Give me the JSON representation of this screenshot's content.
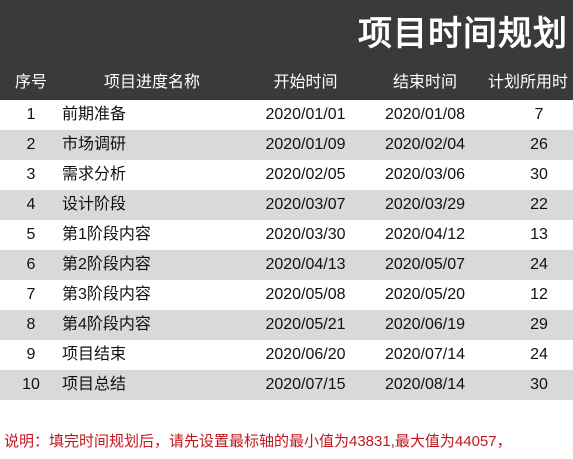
{
  "title": "项目时间规划",
  "headers": {
    "index": "序号",
    "name": "项目进度名称",
    "start": "开始时间",
    "end": "结束时间",
    "days": "计划所用时"
  },
  "rows": [
    {
      "index": "1",
      "name": "前期准备",
      "start": "2020/01/01",
      "end": "2020/01/08",
      "days": "7"
    },
    {
      "index": "2",
      "name": "市场调研",
      "start": "2020/01/09",
      "end": "2020/02/04",
      "days": "26"
    },
    {
      "index": "3",
      "name": "需求分析",
      "start": "2020/02/05",
      "end": "2020/03/06",
      "days": "30"
    },
    {
      "index": "4",
      "name": "设计阶段",
      "start": "2020/03/07",
      "end": "2020/03/29",
      "days": "22"
    },
    {
      "index": "5",
      "name": "第1阶段内容",
      "start": "2020/03/30",
      "end": "2020/04/12",
      "days": "13"
    },
    {
      "index": "6",
      "name": "第2阶段内容",
      "start": "2020/04/13",
      "end": "2020/05/07",
      "days": "24"
    },
    {
      "index": "7",
      "name": "第3阶段内容",
      "start": "2020/05/08",
      "end": "2020/05/20",
      "days": "12"
    },
    {
      "index": "8",
      "name": "第4阶段内容",
      "start": "2020/05/21",
      "end": "2020/06/19",
      "days": "29"
    },
    {
      "index": "9",
      "name": "项目结束",
      "start": "2020/06/20",
      "end": "2020/07/14",
      "days": "24"
    },
    {
      "index": "10",
      "name": "项目总结",
      "start": "2020/07/15",
      "end": "2020/08/14",
      "days": "30"
    }
  ],
  "note": "说明：填完时间规划后，请先设置最标轴的最小值为43831,最大值为44057，",
  "colors": {
    "header_bg": "#3a3a3a",
    "header_text": "#ffffff",
    "row_alt": "#d9d9d9",
    "note_text": "#c0171f"
  }
}
